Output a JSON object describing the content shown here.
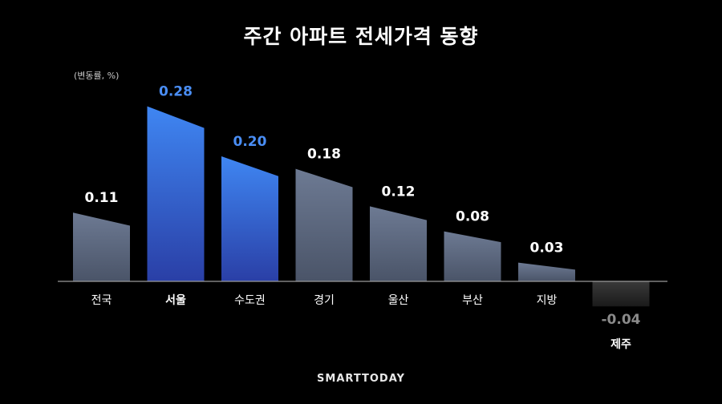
{
  "chart_data": {
    "type": "bar",
    "title": "주간 아파트 전세가격 동향",
    "unit_label": "(변동률, %)",
    "categories": [
      "전국",
      "서울",
      "수도권",
      "경기",
      "울산",
      "부산",
      "지방",
      "제주"
    ],
    "values": [
      0.11,
      0.28,
      0.2,
      0.18,
      0.12,
      0.08,
      0.03,
      -0.04
    ],
    "value_labels": [
      "0.11",
      "0.28",
      "0.20",
      "0.18",
      "0.12",
      "0.08",
      "0.03",
      "-0.04"
    ],
    "highlighted": [
      false,
      true,
      true,
      false,
      false,
      false,
      false,
      false
    ],
    "ylim": [
      -0.05,
      0.3
    ],
    "grid": false,
    "colors": {
      "highlight_top": "#3f86f2",
      "highlight_bottom": "#2a3fa6",
      "highlight_label": "#4a8ef5",
      "normal_top": "#6d7a93",
      "normal_bottom": "#4a5468",
      "normal_label": "#ffffff",
      "negative_top": "#3a3a3a",
      "negative_bottom": "#1a1a1a",
      "negative_label": "#8a8a8a",
      "baseline": "#9a9a9a"
    }
  },
  "brand": "SMARTTODAY"
}
